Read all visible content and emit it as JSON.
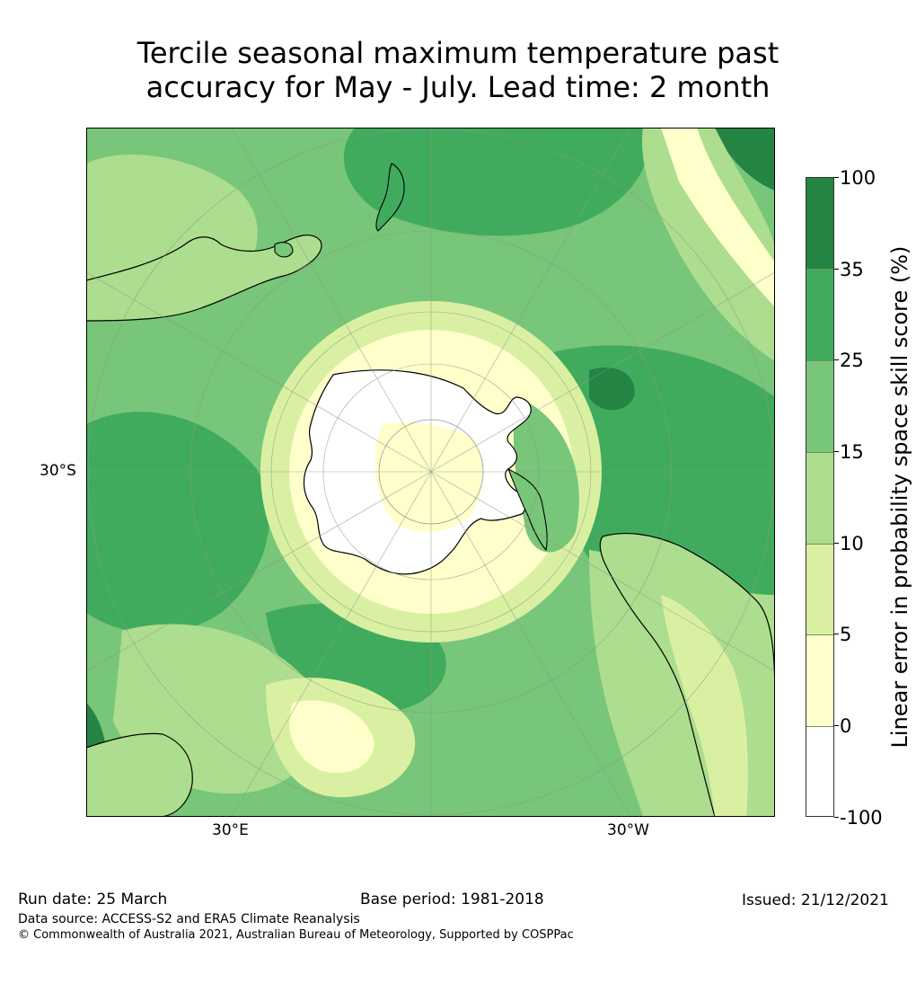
{
  "title": {
    "line1": "Tercile seasonal maximum temperature past",
    "line2": "accuracy for May - July. Lead time: 2 month"
  },
  "map": {
    "projection": "south-polar-stereographic",
    "lat_label": "30°S",
    "lon_labels": [
      "30°E",
      "30°W"
    ],
    "palette": {
      "white": "#ffffff",
      "pale_yellow": "#ffffcc",
      "light_yellow_green": "#d9f0a3",
      "light_green": "#addd8e",
      "mid_green": "#78c679",
      "green": "#41ab5d",
      "dark_green": "#238443"
    }
  },
  "colorbar": {
    "label": "Linear error in probability space skill score (%)",
    "ticks": [
      "100",
      "35",
      "25",
      "15",
      "10",
      "5",
      "0",
      "-100"
    ],
    "colors": [
      "#238443",
      "#41ab5d",
      "#78c679",
      "#addd8e",
      "#d9f0a3",
      "#ffffcc",
      "#ffffff"
    ]
  },
  "footer": {
    "run_date": "Run date: 25 March",
    "base_period": "Base period: 1981-2018",
    "issued": "Issued: 21/12/2021",
    "data_source": "Data source: ACCESS-S2 and ERA5 Climate Reanalysis",
    "copyright": "© Commonwealth of Australia 2021, Australian Bureau of Meteorology, Supported by COSPPac"
  }
}
